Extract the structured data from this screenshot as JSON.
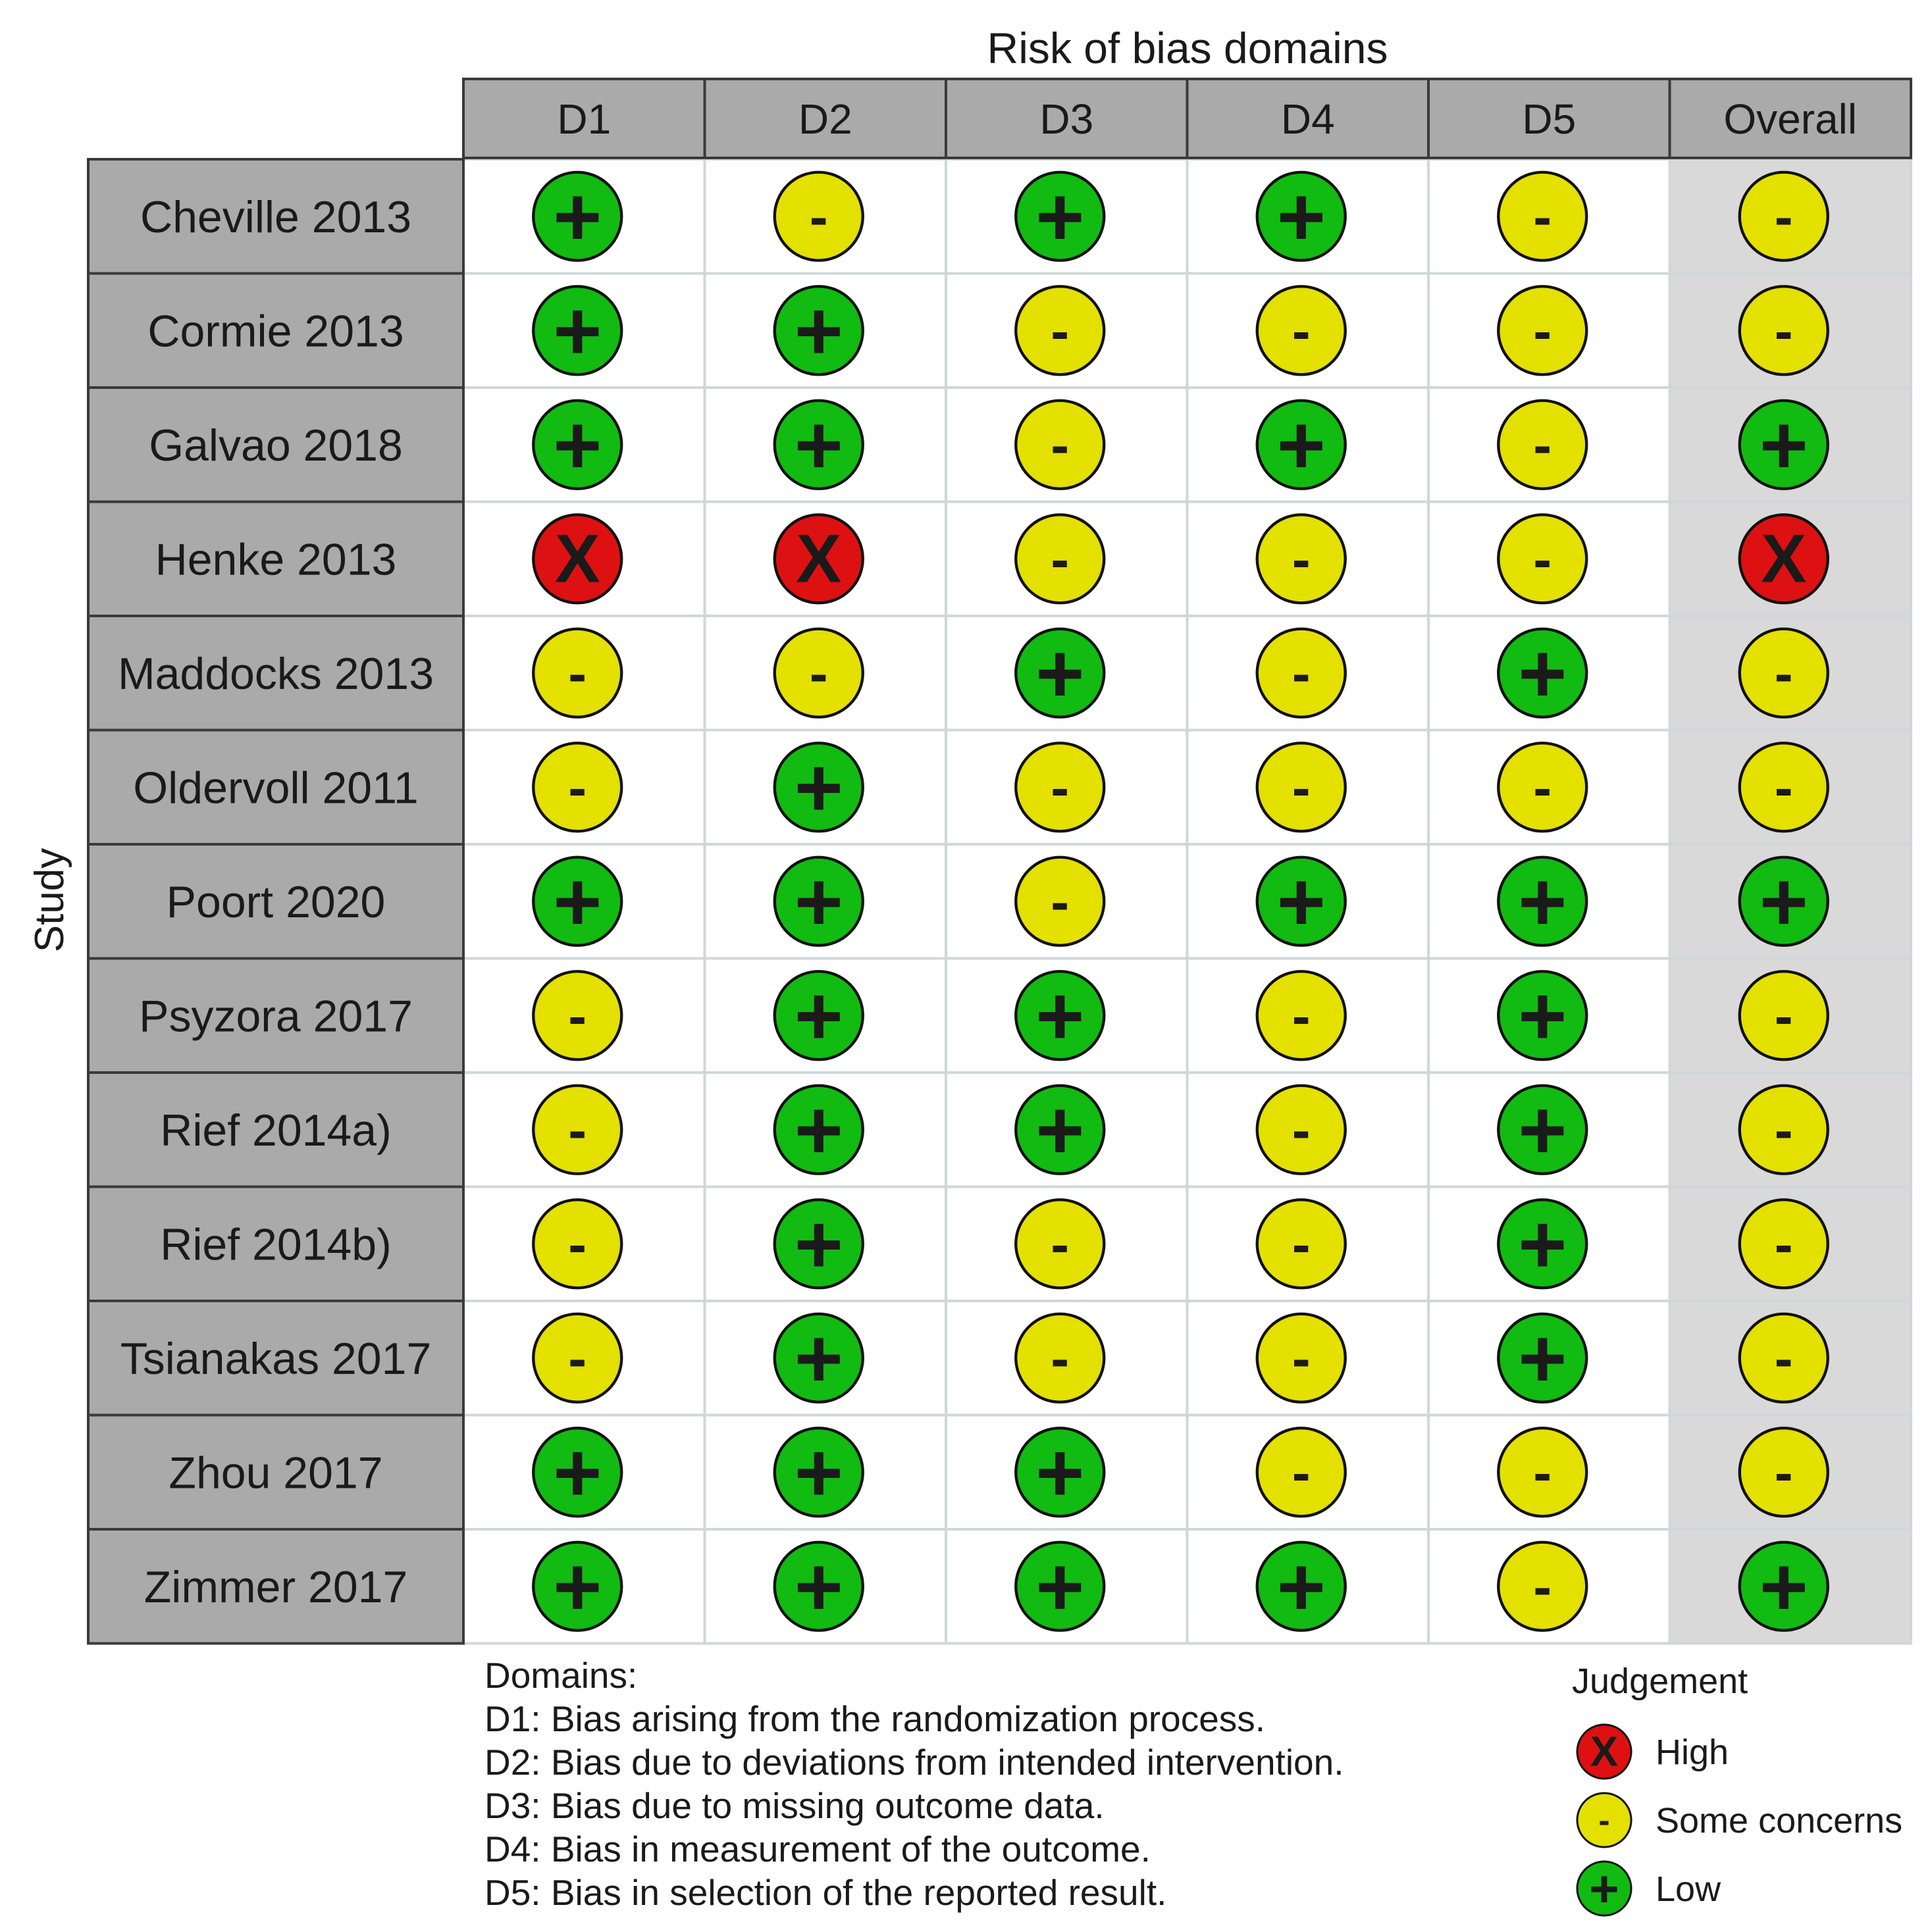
{
  "chart_data": {
    "type": "table",
    "title": "Risk of bias domains",
    "ylabel": "Study",
    "columns": [
      "D1",
      "D2",
      "D3",
      "D4",
      "D5",
      "Overall"
    ],
    "rows": [
      {
        "study": "Cheville 2013",
        "judgements": [
          "Low",
          "Some concerns",
          "Low",
          "Low",
          "Some concerns",
          "Some concerns"
        ]
      },
      {
        "study": "Cormie 2013",
        "judgements": [
          "Low",
          "Low",
          "Some concerns",
          "Some concerns",
          "Some concerns",
          "Some concerns"
        ]
      },
      {
        "study": "Galvao 2018",
        "judgements": [
          "Low",
          "Low",
          "Some concerns",
          "Low",
          "Some concerns",
          "Low"
        ]
      },
      {
        "study": "Henke 2013",
        "judgements": [
          "High",
          "High",
          "Some concerns",
          "Some concerns",
          "Some concerns",
          "High"
        ]
      },
      {
        "study": "Maddocks 2013",
        "judgements": [
          "Some concerns",
          "Some concerns",
          "Low",
          "Some concerns",
          "Low",
          "Some concerns"
        ]
      },
      {
        "study": "Oldervoll 2011",
        "judgements": [
          "Some concerns",
          "Low",
          "Some concerns",
          "Some concerns",
          "Some concerns",
          "Some concerns"
        ]
      },
      {
        "study": "Poort 2020",
        "judgements": [
          "Low",
          "Low",
          "Some concerns",
          "Low",
          "Low",
          "Low"
        ]
      },
      {
        "study": "Psyzora 2017",
        "judgements": [
          "Some concerns",
          "Low",
          "Low",
          "Some concerns",
          "Low",
          "Some concerns"
        ]
      },
      {
        "study": "Rief 2014a)",
        "judgements": [
          "Some concerns",
          "Low",
          "Low",
          "Some concerns",
          "Low",
          "Some concerns"
        ]
      },
      {
        "study": "Rief 2014b)",
        "judgements": [
          "Some concerns",
          "Low",
          "Some concerns",
          "Some concerns",
          "Low",
          "Some concerns"
        ]
      },
      {
        "study": "Tsianakas 2017",
        "judgements": [
          "Some concerns",
          "Low",
          "Some concerns",
          "Some concerns",
          "Low",
          "Some concerns"
        ]
      },
      {
        "study": "Zhou 2017",
        "judgements": [
          "Low",
          "Low",
          "Low",
          "Some concerns",
          "Some concerns",
          "Some concerns"
        ]
      },
      {
        "study": "Zimmer 2017",
        "judgements": [
          "Low",
          "Low",
          "Low",
          "Low",
          "Some concerns",
          "Low"
        ]
      }
    ],
    "judgement_styles": {
      "High": {
        "symbol": "X",
        "color": "#dd1111"
      },
      "Some concerns": {
        "symbol": "-",
        "color": "#e4e000"
      },
      "Low": {
        "symbol": "+",
        "color": "#11bb11"
      }
    },
    "domains_title": "Domains:",
    "domains": [
      "D1: Bias arising from the randomization process.",
      "D2: Bias due to deviations from intended intervention.",
      "D3: Bias due to missing outcome data.",
      "D4: Bias in measurement of the outcome.",
      "D5: Bias in selection of the reported result."
    ],
    "legend_title": "Judgement",
    "legend": [
      "High",
      "Some concerns",
      "Low"
    ],
    "colors": {
      "header_fill": "#aaaaaa",
      "overall_fill": "#d9d9d9",
      "border": "#3a3a3a",
      "cell_line": "#cfd8d8"
    }
  }
}
